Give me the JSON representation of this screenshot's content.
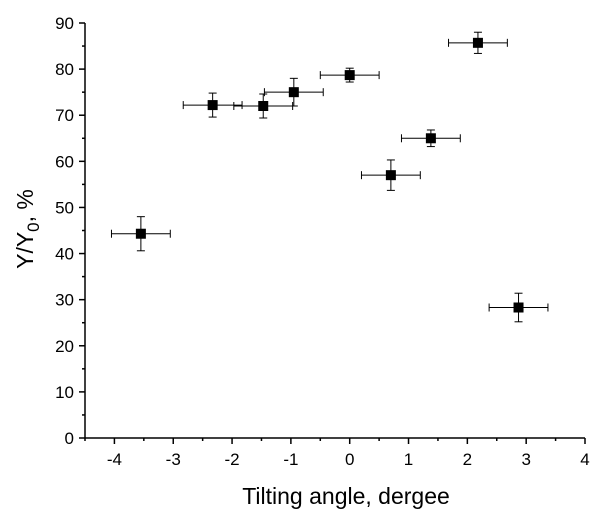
{
  "chart_data": {
    "type": "scatter",
    "xlabel": "Tilting angle, dergee",
    "ylabel_main": "Y/Y",
    "ylabel_sub": "0",
    "ylabel_suffix": ", %",
    "xlim": [
      -4.5,
      4
    ],
    "ylim": [
      0,
      90
    ],
    "x_ticks": [
      -4,
      -3,
      -2,
      -1,
      0,
      1,
      2,
      3,
      4
    ],
    "y_ticks": [
      0,
      10,
      20,
      30,
      40,
      50,
      60,
      70,
      80,
      90
    ],
    "grid": false,
    "marker": "square",
    "points": [
      {
        "x": -3.55,
        "y": 44.3,
        "xerr": 0.5,
        "yerr": 3.7
      },
      {
        "x": -2.33,
        "y": 72.2,
        "xerr": 0.5,
        "yerr": 2.6
      },
      {
        "x": -1.47,
        "y": 72.0,
        "xerr": 0.5,
        "yerr": 2.6
      },
      {
        "x": -0.95,
        "y": 75.0,
        "xerr": 0.5,
        "yerr": 3.0
      },
      {
        "x": 0.0,
        "y": 78.7,
        "xerr": 0.5,
        "yerr": 1.5
      },
      {
        "x": 0.7,
        "y": 57.0,
        "xerr": 0.5,
        "yerr": 3.3
      },
      {
        "x": 1.38,
        "y": 65.0,
        "xerr": 0.5,
        "yerr": 1.8
      },
      {
        "x": 2.18,
        "y": 85.7,
        "xerr": 0.5,
        "yerr": 2.3
      },
      {
        "x": 2.87,
        "y": 28.3,
        "xerr": 0.5,
        "yerr": 3.1
      }
    ]
  }
}
